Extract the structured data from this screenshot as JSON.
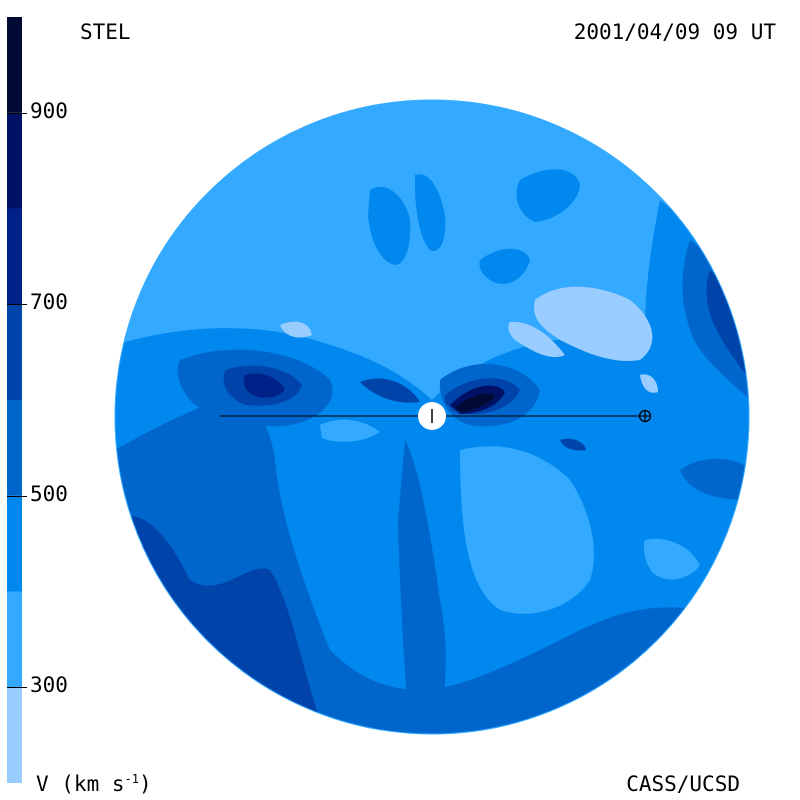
{
  "header": {
    "observatory": "STEL",
    "timestamp": "2001/04/09 09 UT"
  },
  "footer": {
    "units_prefix": "V (km s",
    "units_exp": "-1",
    "units_suffix": ")",
    "credit": "CASS/UCSD"
  },
  "colorbar": {
    "range": [
      200,
      1000
    ],
    "ticks": [
      {
        "value": 300,
        "label": "300"
      },
      {
        "value": 500,
        "label": "500"
      },
      {
        "value": 700,
        "label": "700"
      },
      {
        "value": 900,
        "label": "900"
      }
    ],
    "bands": [
      {
        "from": 200,
        "to": 300,
        "color": "#99ccff"
      },
      {
        "from": 300,
        "to": 400,
        "color": "#33aaff"
      },
      {
        "from": 400,
        "to": 500,
        "color": "#0088ee"
      },
      {
        "from": 500,
        "to": 600,
        "color": "#0066cc"
      },
      {
        "from": 600,
        "to": 700,
        "color": "#0044aa"
      },
      {
        "from": 700,
        "to": 800,
        "color": "#002288"
      },
      {
        "from": 800,
        "to": 900,
        "color": "#001166"
      },
      {
        "from": 900,
        "to": 1000,
        "color": "#000a33"
      }
    ]
  },
  "map": {
    "background_color": "#33aaff",
    "sun_icon": "sun-disk-icon",
    "earth_icon": "earth-symbol-icon"
  }
}
